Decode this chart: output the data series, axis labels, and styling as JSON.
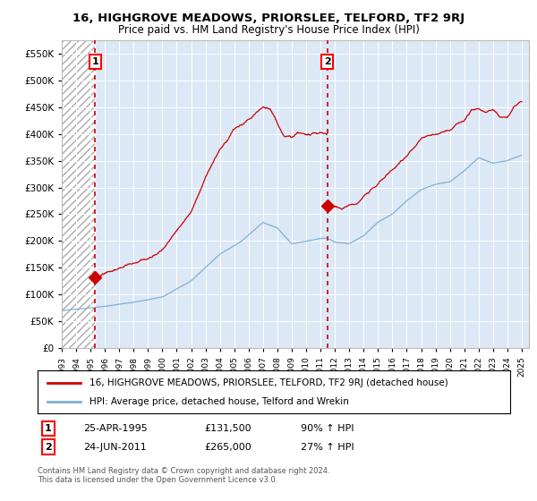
{
  "title": "16, HIGHGROVE MEADOWS, PRIORSLEE, TELFORD, TF2 9RJ",
  "subtitle": "Price paid vs. HM Land Registry's House Price Index (HPI)",
  "ylim": [
    0,
    575000
  ],
  "xlim_start": 1993.0,
  "xlim_end": 2025.5,
  "yticks": [
    0,
    50000,
    100000,
    150000,
    200000,
    250000,
    300000,
    350000,
    400000,
    450000,
    500000,
    550000
  ],
  "ytick_labels": [
    "£0",
    "£50K",
    "£100K",
    "£150K",
    "£200K",
    "£250K",
    "£300K",
    "£350K",
    "£400K",
    "£450K",
    "£500K",
    "£550K"
  ],
  "xticks": [
    1993,
    1994,
    1995,
    1996,
    1997,
    1998,
    1999,
    2000,
    2001,
    2002,
    2003,
    2004,
    2005,
    2006,
    2007,
    2008,
    2009,
    2010,
    2011,
    2012,
    2013,
    2014,
    2015,
    2016,
    2017,
    2018,
    2019,
    2020,
    2021,
    2022,
    2023,
    2024,
    2025
  ],
  "transaction1_x": 1995.32,
  "transaction1_y": 131500,
  "transaction1_label": "1",
  "transaction1_date": "25-APR-1995",
  "transaction1_price": "£131,500",
  "transaction1_hpi": "90% ↑ HPI",
  "transaction2_x": 2011.48,
  "transaction2_y": 265000,
  "transaction2_label": "2",
  "transaction2_date": "24-JUN-2011",
  "transaction2_price": "£265,000",
  "transaction2_hpi": "27% ↑ HPI",
  "red_line_color": "#cc0000",
  "blue_line_color": "#7fb0d8",
  "hatch_color": "#aaaaaa",
  "plot_bg": "#dce8f5",
  "legend_line1": "16, HIGHGROVE MEADOWS, PRIORSLEE, TELFORD, TF2 9RJ (detached house)",
  "legend_line2": "HPI: Average price, detached house, Telford and Wrekin",
  "footer": "Contains HM Land Registry data © Crown copyright and database right 2024.\nThis data is licensed under the Open Government Licence v3.0.",
  "hpi_keypoints": [
    [
      1993.0,
      70000
    ],
    [
      1995.0,
      75000
    ],
    [
      1996.0,
      78000
    ],
    [
      1998.0,
      85000
    ],
    [
      2000.0,
      95000
    ],
    [
      2002.0,
      125000
    ],
    [
      2004.0,
      175000
    ],
    [
      2005.5,
      200000
    ],
    [
      2007.0,
      235000
    ],
    [
      2008.0,
      225000
    ],
    [
      2009.0,
      195000
    ],
    [
      2010.0,
      200000
    ],
    [
      2011.0,
      205000
    ],
    [
      2011.5,
      205000
    ],
    [
      2012.0,
      198000
    ],
    [
      2013.0,
      195000
    ],
    [
      2014.0,
      210000
    ],
    [
      2015.0,
      235000
    ],
    [
      2016.0,
      250000
    ],
    [
      2017.0,
      275000
    ],
    [
      2018.0,
      295000
    ],
    [
      2019.0,
      305000
    ],
    [
      2020.0,
      310000
    ],
    [
      2021.0,
      330000
    ],
    [
      2022.0,
      355000
    ],
    [
      2023.0,
      345000
    ],
    [
      2024.0,
      350000
    ],
    [
      2025.0,
      360000
    ]
  ],
  "red_keypoints_seg1": [
    [
      1995.32,
      131500
    ],
    [
      1996.0,
      140000
    ],
    [
      1997.0,
      148000
    ],
    [
      1998.0,
      158000
    ],
    [
      1999.0,
      168000
    ],
    [
      2000.0,
      185000
    ],
    [
      2001.0,
      215000
    ],
    [
      2002.0,
      255000
    ],
    [
      2003.0,
      315000
    ],
    [
      2004.0,
      370000
    ],
    [
      2005.0,
      405000
    ],
    [
      2006.0,
      425000
    ],
    [
      2007.0,
      450000
    ],
    [
      2007.5,
      445000
    ],
    [
      2008.0,
      415000
    ],
    [
      2008.5,
      395000
    ],
    [
      2009.0,
      390000
    ],
    [
      2009.5,
      400000
    ],
    [
      2010.0,
      400000
    ],
    [
      2010.5,
      405000
    ],
    [
      2011.0,
      400000
    ],
    [
      2011.48,
      400000
    ]
  ],
  "red_keypoints_seg2": [
    [
      2011.48,
      265000
    ],
    [
      2012.0,
      265000
    ],
    [
      2012.5,
      260000
    ],
    [
      2013.0,
      265000
    ],
    [
      2013.5,
      270000
    ],
    [
      2014.0,
      285000
    ],
    [
      2015.0,
      305000
    ],
    [
      2016.0,
      330000
    ],
    [
      2017.0,
      360000
    ],
    [
      2018.0,
      390000
    ],
    [
      2019.0,
      400000
    ],
    [
      2020.0,
      410000
    ],
    [
      2020.5,
      420000
    ],
    [
      2021.0,
      430000
    ],
    [
      2021.5,
      450000
    ],
    [
      2022.0,
      450000
    ],
    [
      2022.5,
      440000
    ],
    [
      2023.0,
      445000
    ],
    [
      2023.5,
      430000
    ],
    [
      2024.0,
      430000
    ],
    [
      2024.5,
      450000
    ],
    [
      2025.0,
      460000
    ]
  ]
}
